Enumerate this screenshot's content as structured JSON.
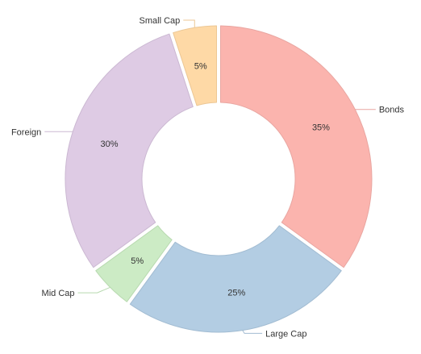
{
  "chart_data": {
    "type": "pie",
    "donut": true,
    "slices": [
      {
        "label": "Bonds",
        "value": 35,
        "percent_label": "35%",
        "color": "#fbb4ae",
        "stroke": "#e9a6a1"
      },
      {
        "label": "Large Cap",
        "value": 25,
        "percent_label": "25%",
        "color": "#b3cde3",
        "stroke": "#a2bcd2"
      },
      {
        "label": "Mid Cap",
        "value": 5,
        "percent_label": "5%",
        "color": "#ccebc5",
        "stroke": "#b7d9af"
      },
      {
        "label": "Foreign",
        "value": 30,
        "percent_label": "30%",
        "color": "#decbe4",
        "stroke": "#cbb8d2"
      },
      {
        "label": "Small Cap",
        "value": 5,
        "percent_label": "5%",
        "color": "#fed9a6",
        "stroke": "#ecc795"
      }
    ],
    "legend": "none"
  }
}
